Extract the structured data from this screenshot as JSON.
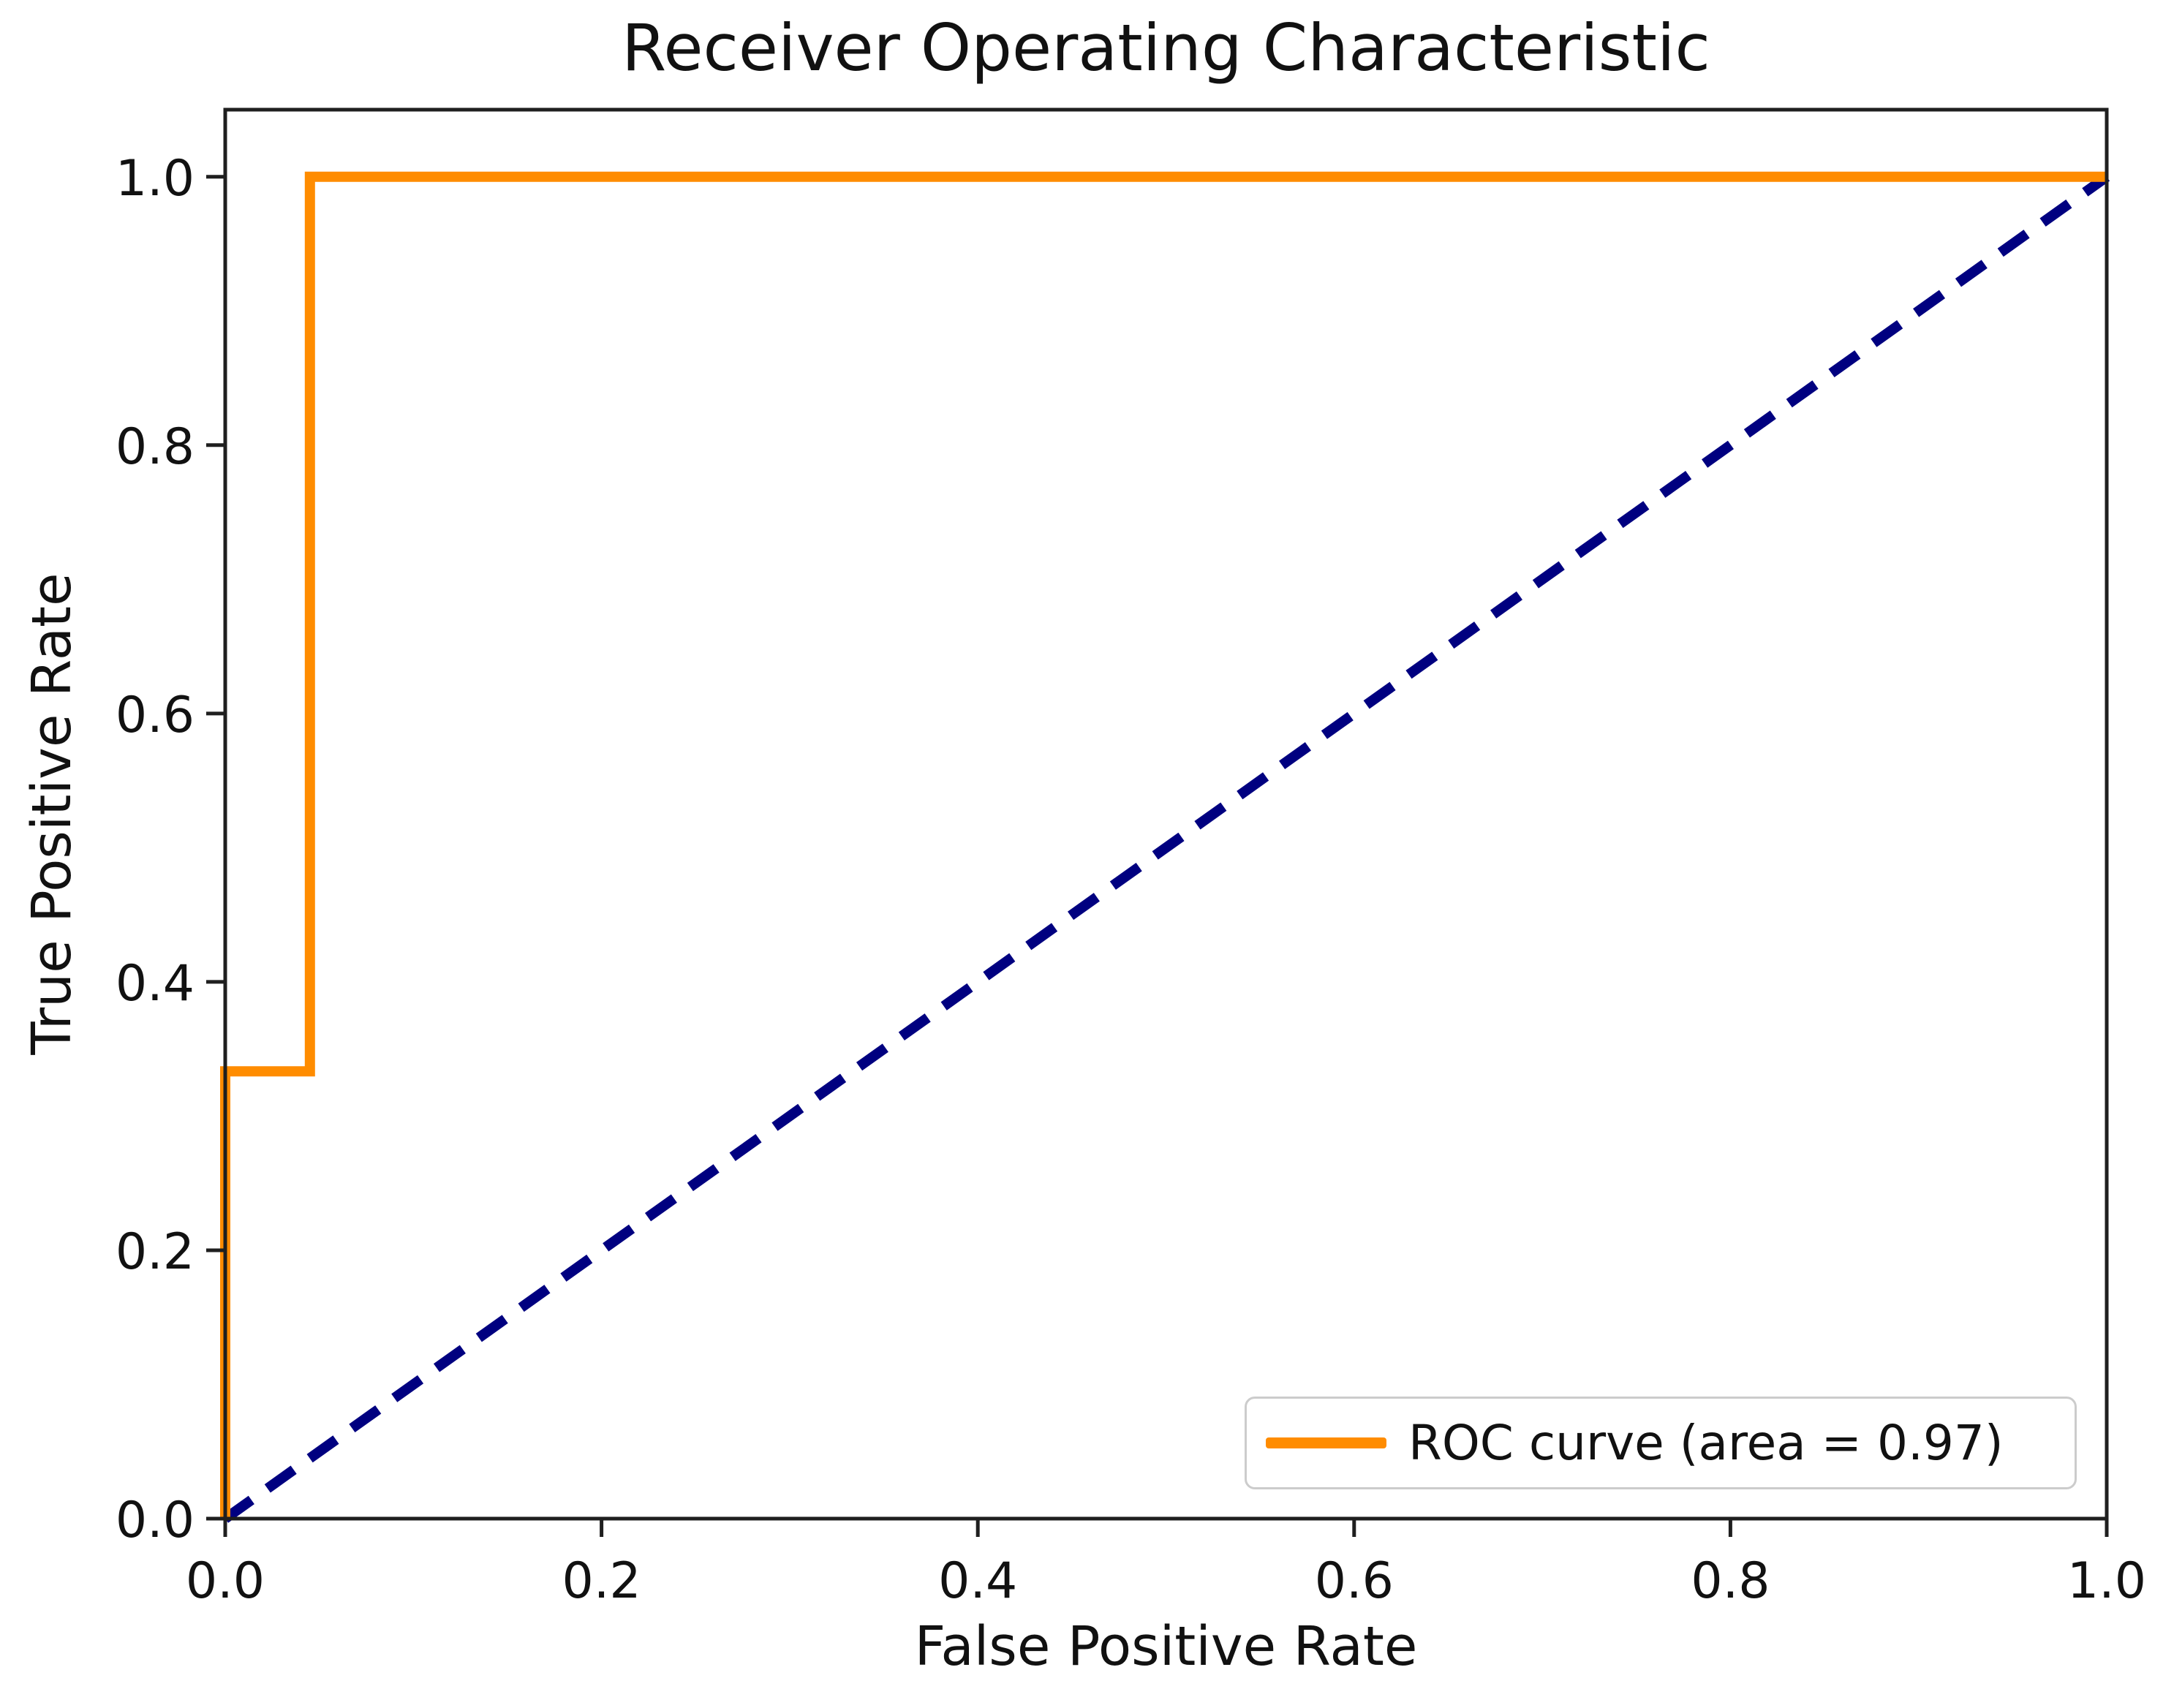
{
  "chart_data": {
    "type": "line",
    "title": "Receiver Operating Characteristic",
    "xlabel": "False Positive Rate",
    "ylabel": "True Positive Rate",
    "xlim": [
      0.0,
      1.0
    ],
    "ylim": [
      0.0,
      1.05
    ],
    "grid": false,
    "axis_color": "#1f1f1f",
    "x_ticks": {
      "values": [
        0.0,
        0.2,
        0.4,
        0.6,
        0.8,
        1.0
      ],
      "labels": [
        "0.0",
        "0.2",
        "0.4",
        "0.6",
        "0.8",
        "1.0"
      ]
    },
    "y_ticks": {
      "values": [
        0.0,
        0.2,
        0.4,
        0.6,
        0.8,
        1.0
      ],
      "labels": [
        "0.0",
        "0.2",
        "0.4",
        "0.6",
        "0.8",
        "1.0"
      ]
    },
    "series": [
      {
        "name": "chance-diagonal",
        "color": "#000080",
        "style": "dashed",
        "line_width": 14,
        "points": [
          [
            0.0,
            0.0
          ],
          [
            1.0,
            1.0
          ]
        ]
      },
      {
        "name": "ROC curve",
        "color": "#FF8C00",
        "style": "solid",
        "line_width": 14,
        "auc": 0.97,
        "points": [
          [
            0.0,
            0.0
          ],
          [
            0.0,
            0.3333
          ],
          [
            0.045,
            0.3333
          ],
          [
            0.045,
            1.0
          ],
          [
            1.0,
            1.0
          ]
        ]
      }
    ],
    "legend": {
      "position": "lower right",
      "border_color": "#cccccc",
      "entries": [
        {
          "label": "ROC curve (area = 0.97)",
          "color": "#FF8C00"
        }
      ]
    }
  }
}
